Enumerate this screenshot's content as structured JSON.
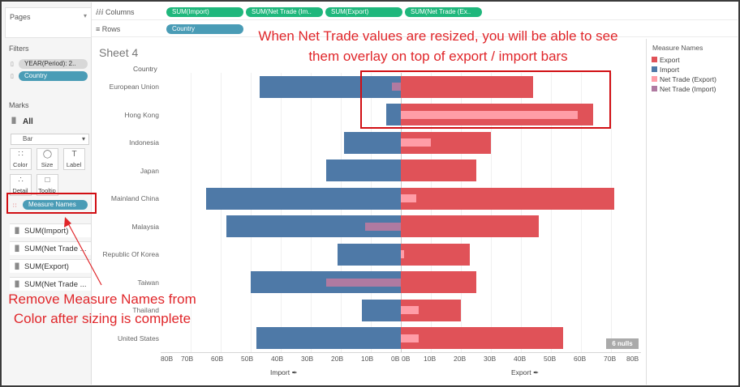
{
  "side": {
    "pages_title": "Pages",
    "filters_title": "Filters",
    "filter_pills": [
      "YEAR(Period): 2..",
      "Country"
    ],
    "marks_title": "Marks",
    "marks_all": "All",
    "mark_type": "Bar",
    "mark_buttons": [
      "Color",
      "Size",
      "Label",
      "Detail",
      "Tooltip"
    ],
    "measure_names_pill": "Measure Names",
    "shelf_items": [
      "SUM(Import)",
      "SUM(Net Trade ...",
      "SUM(Export)",
      "SUM(Net Trade ..."
    ]
  },
  "shelves": {
    "columns_label": "Columns",
    "rows_label": "Rows",
    "column_pills": [
      "SUM(Import)",
      "SUM(Net Trade (Im..",
      "SUM(Export)",
      "SUM(Net Trade (Ex.."
    ],
    "row_pill": "Country"
  },
  "sheet_title": "Sheet 4",
  "country_header": "Country",
  "legend": {
    "title": "Measure Names",
    "items": [
      {
        "label": "Export",
        "color": "#e05258"
      },
      {
        "label": "Import",
        "color": "#4e79a7"
      },
      {
        "label": "Net Trade (Export)",
        "color": "#ff9da7"
      },
      {
        "label": "Net Trade (Import)",
        "color": "#b07aa1"
      }
    ]
  },
  "nulls_badge": "6 nulls",
  "annotations": {
    "top": "When Net Trade values are resized, you will be able to see them overlay on top of export / import bars",
    "bottom": "Remove Measure Names from Color after sizing is complete"
  },
  "colors": {
    "export": "#e05258",
    "import": "#4e79a7",
    "net_export": "#ff9da7",
    "net_import": "#b07aa1",
    "annotation": "#e0262a"
  },
  "chart_data": {
    "type": "bar",
    "categories": [
      "European Union",
      "Hong Kong",
      "Indonesia",
      "Japan",
      "Mainland China",
      "Malaysia",
      "Republic Of Korea",
      "Taiwan",
      "Thailand",
      "United States"
    ],
    "series": [
      {
        "name": "Import",
        "values": [
          47,
          5,
          19,
          25,
          65,
          58,
          21,
          50,
          13,
          48
        ]
      },
      {
        "name": "Net Trade (Import)",
        "values": [
          3,
          null,
          null,
          null,
          null,
          12,
          null,
          25,
          null,
          null
        ]
      },
      {
        "name": "Export",
        "values": [
          44,
          64,
          30,
          25,
          71,
          46,
          23,
          25,
          20,
          54
        ]
      },
      {
        "name": "Net Trade (Export)",
        "values": [
          null,
          59,
          10,
          null,
          5,
          null,
          1,
          null,
          6,
          6
        ]
      }
    ],
    "left_axis": {
      "label": "Import",
      "ticks": [
        "80B",
        "70B",
        "60B",
        "50B",
        "40B",
        "30B",
        "20B",
        "10B",
        "0B"
      ],
      "range": [
        0,
        80
      ]
    },
    "right_axis": {
      "label": "Export",
      "ticks": [
        "0B",
        "10B",
        "20B",
        "30B",
        "40B",
        "50B",
        "60B",
        "70B",
        "80B"
      ],
      "range": [
        0,
        80
      ]
    },
    "units": "B"
  }
}
